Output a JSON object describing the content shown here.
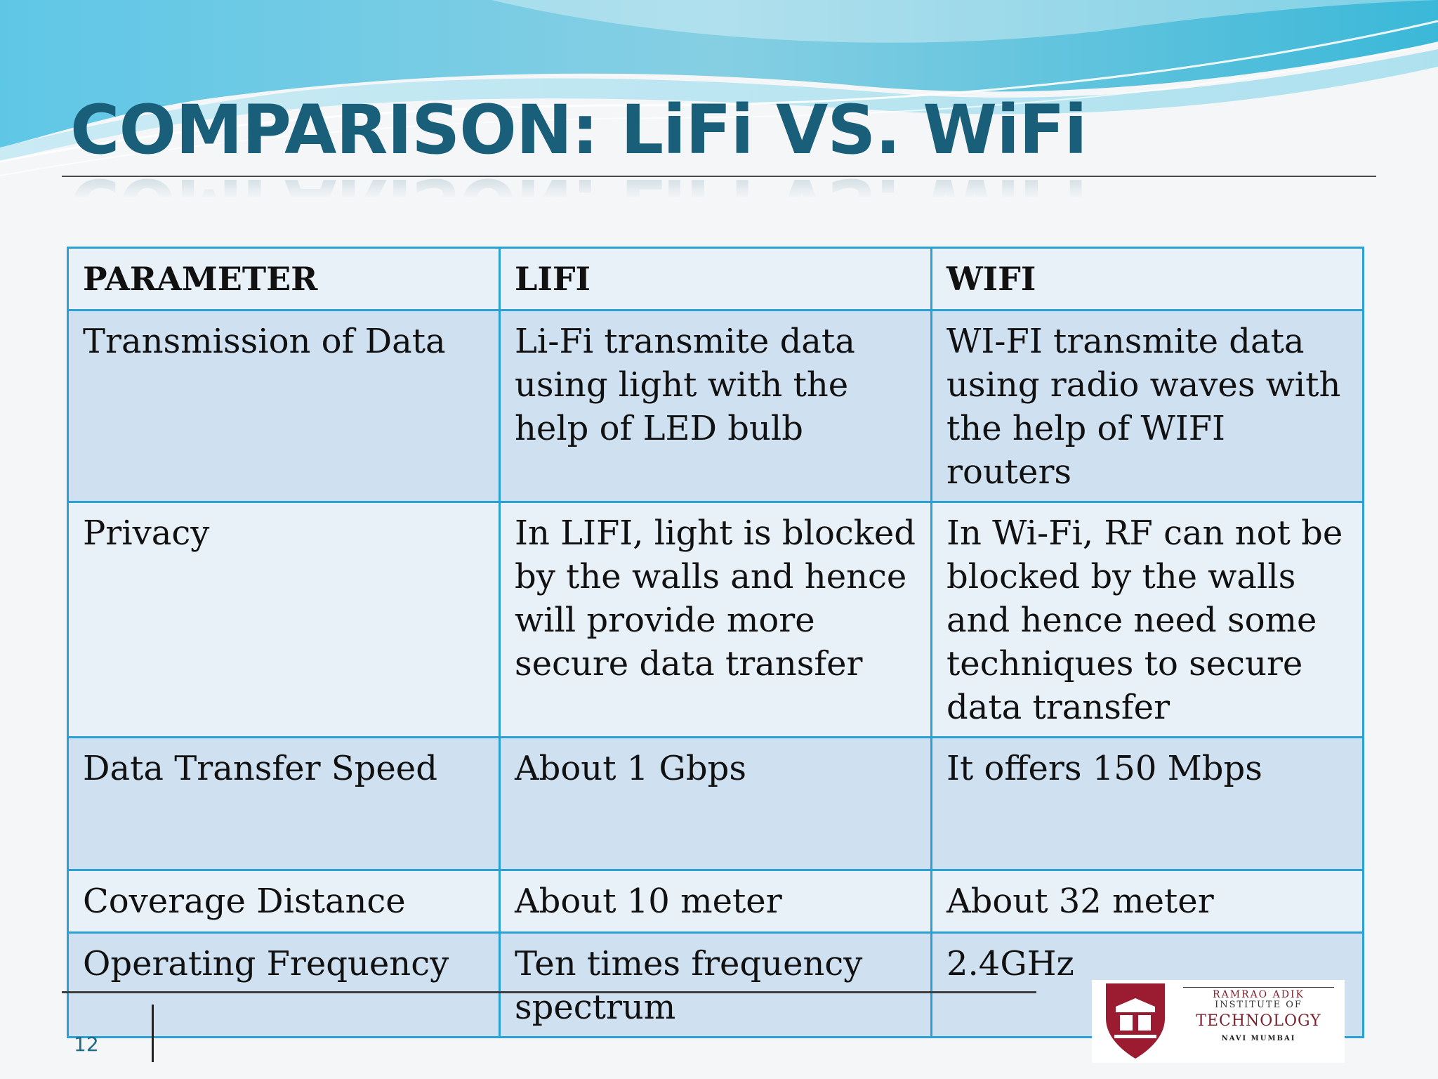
{
  "slide": {
    "title": "COMPARISON: LiFi VS. WiFi",
    "page_number": "12"
  },
  "table": {
    "headers": [
      "PARAMETER",
      "LIFI",
      "WIFI"
    ],
    "rows": [
      {
        "parameter": "Transmission of Data",
        "lifi": "Li-Fi transmite data using light with the help of LED bulb",
        "wifi": "WI-FI transmite data using radio waves with the help of WIFI routers"
      },
      {
        "parameter": "Privacy",
        "lifi": "In LIFI, light is blocked by the walls and hence will provide more secure data transfer",
        "wifi": "In Wi-Fi, RF can not be blocked by the walls and hence need some techniques to secure data transfer"
      },
      {
        "parameter": "Data Transfer Speed",
        "lifi": "About 1 Gbps",
        "wifi": "It offers 150 Mbps"
      },
      {
        "parameter": "Coverage Distance",
        "lifi": "About 10 meter",
        "wifi": "About 32 meter"
      },
      {
        "parameter": "Operating Frequency",
        "lifi": "Ten times frequency spectrum",
        "wifi": "2.4GHz"
      }
    ]
  },
  "logo": {
    "line1": "RAMRAO ADIK",
    "line2": "INSTITUTE OF",
    "line3": "TECHNOLOGY",
    "line4": "NAVI MUMBAI"
  },
  "colors": {
    "title": "#1a5f7a",
    "table_border": "#2aa0d4",
    "row_dark": "#cfe0f1",
    "row_light": "#e8f0f8"
  }
}
